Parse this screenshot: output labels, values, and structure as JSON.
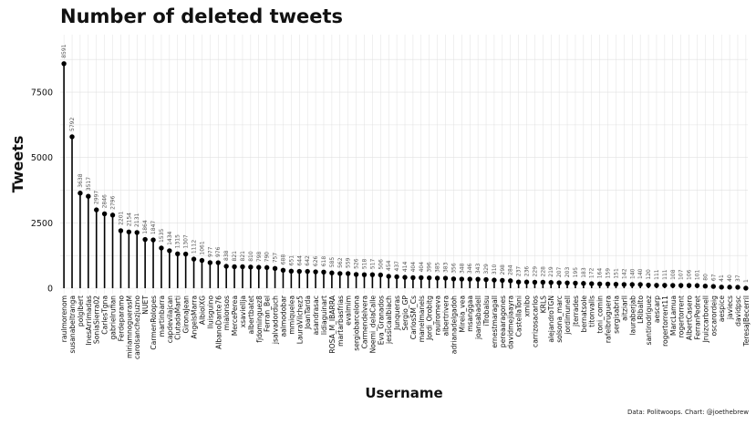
{
  "chart_data": {
    "type": "lollipop",
    "title": "Number of deleted tweets",
    "xlabel": "Username",
    "ylabel": "Tweets",
    "caption": "Data: Politwoops. Chart: @joethebrew",
    "ylim": [
      0,
      9700
    ],
    "yticks": [
      0,
      2500,
      5000,
      7500
    ],
    "yticklabels": [
      "0",
      "2500",
      "5000",
      "7500"
    ],
    "accent": "#000000",
    "grid_color": "#e0e0e0",
    "label_color": "#555555",
    "categories": [
      "raulmorenom",
      "susanabeltranga",
      "polgibert",
      "InesArrimadas",
      "SoniaSierra02",
      "CarlesTgna",
      "gabrielrufian",
      "Ferdeparamo",
      "miriamnoguerasM",
      "carolsanchezjuzno",
      "NUET",
      "CarmenRolopes",
      "martinbarra",
      "capdevilajcan",
      "CiutadaMarti",
      "GironaJean",
      "AngelsMarra",
      "AlbiolXG",
      "lluisguino",
      "AlbanoDante76",
      "mialonsos",
      "MercePerea",
      "xsaviellja",
      "albertbatet",
      "fjdominguez8",
      "Ferran_Bel",
      "jsalvadorduch",
      "aalmodobar",
      "mmiquelea",
      "LauraVilchez5",
      "JoanTarda",
      "asandrasac",
      "lidiaguinart",
      "ROSA_M_IBARRA",
      "martarbasfrias",
      "evalmim",
      "sergiobarcelona",
      "Carmendelvera",
      "Noemi_delaCalle",
      "Eva_Granados",
      "jessicaalbiach",
      "Junqueras",
      "Sergio_GP",
      "CarlosSM_Cs",
      "manelmanels",
      "Jordi_Orobitg",
      "raulromeva",
      "albertrivera",
      "adrianadelgadoh",
      "Mireia_vea",
      "msanggaa",
      "joansabadell",
      "iTrobalsu",
      "ernestmaragall",
      "pereaaragones",
      "davidmejiaayra",
      "CastellaToni",
      "xmibo",
      "carrizosacarlos",
      "KRLS",
      "alejandroTGN",
      "solsona_marc",
      "jordimunell",
      "jterrades",
      "bernatsole",
      "titonvalls",
      "toni_comin",
      "rafelbruguera",
      "sergisabria",
      "aitziarll",
      "lauraberjab",
      "LRibalto",
      "santirodriguez",
      "aescarp",
      "rogertorrent11",
      "MarcLamua",
      "rogertorrent",
      "AlbertCasero",
      "FerranPedret",
      "Jruizcarbonell",
      "oscarordeig",
      "aespice",
      "javiecs",
      "davidpsc",
      "TeresaJBecerril"
    ],
    "values": [
      8591,
      5792,
      3638,
      3517,
      2997,
      2846,
      2796,
      2201,
      2154,
      2131,
      1864,
      1847,
      1535,
      1434,
      1315,
      1307,
      1112,
      1061,
      977,
      976,
      838,
      821,
      821,
      810,
      798,
      790,
      757,
      688,
      651,
      644,
      642,
      626,
      618,
      585,
      562,
      559,
      526,
      518,
      517,
      506,
      454,
      437,
      414,
      404,
      404,
      396,
      385,
      383,
      356,
      348,
      346,
      343,
      329,
      310,
      298,
      284,
      237,
      236,
      229,
      228,
      219,
      207,
      203,
      195,
      183,
      172,
      164,
      159,
      151,
      142,
      140,
      140,
      120,
      111,
      111,
      108,
      107,
      106,
      101,
      80,
      67,
      41,
      40,
      37,
      1
    ],
    "value_labels": [
      "8591",
      "5792",
      "3638",
      "3517",
      "2997",
      "2846",
      "2796",
      "2201",
      "2154",
      "2131",
      "1864",
      "1847",
      "1535",
      "1434",
      "1315",
      "1307",
      "1112",
      "1061",
      "977",
      "976",
      "838",
      "821",
      "821",
      "810",
      "798",
      "790",
      "757",
      "688",
      "651",
      "644",
      "642",
      "626",
      "618",
      "585",
      "562",
      "559",
      "526",
      "518",
      "517",
      "506",
      "454",
      "437",
      "414",
      "404",
      "404",
      "396",
      "385",
      "383",
      "356",
      "348",
      "346",
      "343",
      "329",
      "310",
      "298",
      "284",
      "237",
      "236",
      "229",
      "228",
      "219",
      "207",
      "203",
      "195",
      "183",
      "172",
      "164",
      "159",
      "151",
      "142",
      "140",
      "140",
      "120",
      "111",
      "111",
      "108",
      "107",
      "106",
      "101",
      "80",
      "67",
      "41",
      "40",
      "37",
      "1"
    ]
  }
}
